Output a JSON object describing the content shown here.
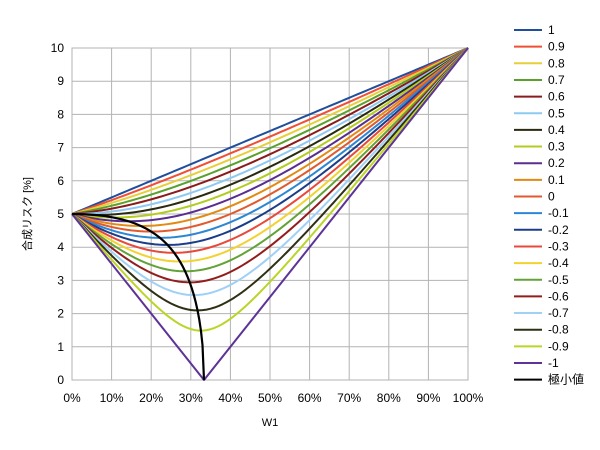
{
  "chart_data": {
    "type": "line",
    "xlabel": "W1",
    "ylabel": "合成リスク [%]",
    "xlim": [
      0,
      100
    ],
    "ylim": [
      0,
      10
    ],
    "x_ticks": [
      "0%",
      "10%",
      "20%",
      "30%",
      "40%",
      "50%",
      "60%",
      "70%",
      "80%",
      "90%",
      "100%"
    ],
    "y_ticks": [
      "0",
      "1",
      "2",
      "3",
      "4",
      "5",
      "6",
      "7",
      "8",
      "9",
      "10"
    ],
    "grid": true,
    "legend_position": "right",
    "sigma_w0": 5,
    "sigma_w1": 10,
    "x_step": 1,
    "series": [
      {
        "name": "1",
        "rho": 1,
        "color": "#1f4e9c"
      },
      {
        "name": "0.9",
        "rho": 0.9,
        "color": "#ef4f35"
      },
      {
        "name": "0.8",
        "rho": 0.8,
        "color": "#e6cf3a"
      },
      {
        "name": "0.7",
        "rho": 0.7,
        "color": "#5aa02c"
      },
      {
        "name": "0.6",
        "rho": 0.6,
        "color": "#8b1a1a"
      },
      {
        "name": "0.5",
        "rho": 0.5,
        "color": "#8ec9f2"
      },
      {
        "name": "0.4",
        "rho": 0.4,
        "color": "#2a2a10"
      },
      {
        "name": "0.3",
        "rho": 0.3,
        "color": "#b3cc1f"
      },
      {
        "name": "0.2",
        "rho": 0.2,
        "color": "#5a2d91"
      },
      {
        "name": "0.1",
        "rho": 0.1,
        "color": "#e38a12"
      },
      {
        "name": "0",
        "rho": 0,
        "color": "#e05a2f"
      },
      {
        "name": "-0.1",
        "rho": -0.1,
        "color": "#2d86d4"
      },
      {
        "name": "-0.2",
        "rho": -0.2,
        "color": "#1b3d88"
      },
      {
        "name": "-0.3",
        "rho": -0.3,
        "color": "#e8493a"
      },
      {
        "name": "-0.4",
        "rho": -0.4,
        "color": "#f2d230"
      },
      {
        "name": "-0.5",
        "rho": -0.5,
        "color": "#62a236"
      },
      {
        "name": "-0.6",
        "rho": -0.6,
        "color": "#931d1d"
      },
      {
        "name": "-0.7",
        "rho": -0.7,
        "color": "#9fd0f5"
      },
      {
        "name": "-0.8",
        "rho": -0.8,
        "color": "#2f2f14"
      },
      {
        "name": "-0.9",
        "rho": -0.9,
        "color": "#bcd428"
      },
      {
        "name": "-1",
        "rho": -1,
        "color": "#5e3397"
      }
    ],
    "minimum_series": {
      "name": "極小値",
      "color": "#000000"
    }
  }
}
